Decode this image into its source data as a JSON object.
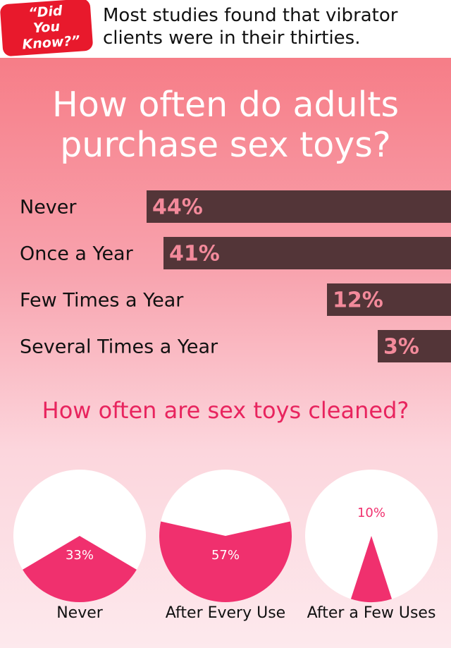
{
  "banner": {
    "badge": "“Did You Know?”",
    "text": "Most studies found that vibrator clients were in their thirties."
  },
  "chart_data": [
    {
      "type": "bar",
      "title": "How often do adults purchase sex toys?",
      "categories": [
        "Never",
        "Once a Year",
        "Few Times a Year",
        "Several Times a Year"
      ],
      "values": [
        44,
        41,
        12,
        3
      ],
      "value_labels": [
        "44%",
        "41%",
        "12%",
        "3%"
      ],
      "color": "#533538"
    },
    {
      "type": "pie",
      "title": "How often are sex  toys cleaned?",
      "categories": [
        "Never",
        "After Every Use",
        "After a Few Uses"
      ],
      "values": [
        33,
        57,
        10
      ],
      "value_labels": [
        "33%",
        "57%",
        "10%"
      ],
      "color": "#f0306e"
    }
  ]
}
